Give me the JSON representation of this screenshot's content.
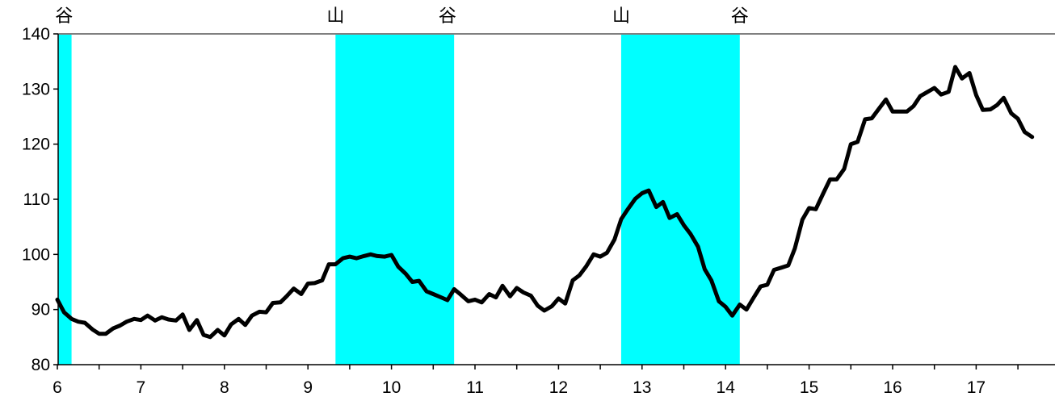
{
  "chart_data": {
    "type": "line",
    "title": "",
    "xlabel": "",
    "ylabel": "",
    "xlim": [
      6,
      17.9
    ],
    "ylim": [
      80,
      140
    ],
    "y_ticks": [
      "80",
      "90",
      "100",
      "110",
      "120",
      "130",
      "140"
    ],
    "x_ticks": [
      "6",
      "7",
      "8",
      "9",
      "10",
      "11",
      "12",
      "13",
      "14",
      "15",
      "16",
      "17"
    ],
    "grid": false,
    "colors": {
      "line": "#000000",
      "shade": "#00ffff",
      "axis": "#000000",
      "top_rule": "#808080"
    },
    "shaded_periods": [
      {
        "start": 6.0,
        "end": 6.17
      },
      {
        "start": 9.33,
        "end": 10.75
      },
      {
        "start": 12.75,
        "end": 14.17
      }
    ],
    "turning_points": [
      {
        "label": "谷",
        "x": 6.08
      },
      {
        "label": "山",
        "x": 9.33
      },
      {
        "label": "谷",
        "x": 10.67
      },
      {
        "label": "山",
        "x": 12.75
      },
      {
        "label": "谷",
        "x": 14.17
      }
    ],
    "series": [
      {
        "x": [
          6.0,
          6.08,
          6.17,
          6.25,
          6.33,
          6.42,
          6.5,
          6.58,
          6.67,
          6.75,
          6.83,
          6.92,
          7.0,
          7.08,
          7.17,
          7.25,
          7.33,
          7.42,
          7.5,
          7.58,
          7.67,
          7.75,
          7.83,
          7.92,
          8.0,
          8.08,
          8.17,
          8.25,
          8.33,
          8.42,
          8.5,
          8.58,
          8.67,
          8.75,
          8.83,
          8.92,
          9.0,
          9.08,
          9.17,
          9.25,
          9.33,
          9.42,
          9.5,
          9.58,
          9.67,
          9.75,
          9.83,
          9.92,
          10.0,
          10.08,
          10.17,
          10.25,
          10.33,
          10.42,
          10.5,
          10.58,
          10.67,
          10.75,
          10.83,
          10.92,
          11.0,
          11.08,
          11.17,
          11.25,
          11.33,
          11.42,
          11.5,
          11.58,
          11.67,
          11.75,
          11.83,
          11.92,
          12.0,
          12.08,
          12.17,
          12.25,
          12.33,
          12.42,
          12.5,
          12.58,
          12.67,
          12.75,
          12.83,
          12.92,
          13.0,
          13.08,
          13.17,
          13.25,
          13.33,
          13.42,
          13.5,
          13.58,
          13.67,
          13.75,
          13.83,
          13.92,
          14.0,
          14.08,
          14.17,
          14.25,
          14.33,
          14.42,
          14.5,
          14.58,
          14.67,
          14.75,
          14.83,
          14.92,
          15.0,
          15.08,
          15.17,
          15.25,
          15.33,
          15.42,
          15.5,
          15.58,
          15.67,
          15.75,
          15.83,
          15.92,
          16.0,
          16.08,
          16.17,
          16.25,
          16.33,
          16.42,
          16.5,
          16.58,
          16.67,
          16.75,
          16.83,
          16.92,
          17.0,
          17.08,
          17.17,
          17.25,
          17.33,
          17.42,
          17.5,
          17.58,
          17.67
        ],
        "values": [
          91.8,
          89.5,
          88.3,
          87.8,
          87.6,
          86.4,
          85.6,
          85.6,
          86.6,
          87.1,
          87.8,
          88.3,
          88.1,
          88.9,
          88.0,
          88.6,
          88.2,
          88.0,
          89.1,
          86.3,
          88.1,
          85.4,
          85.0,
          86.3,
          85.3,
          87.3,
          88.3,
          87.2,
          88.9,
          89.6,
          89.5,
          91.2,
          91.3,
          92.5,
          93.8,
          92.8,
          94.7,
          94.8,
          95.3,
          98.2,
          98.2,
          99.3,
          99.6,
          99.3,
          99.7,
          100.0,
          99.7,
          99.6,
          99.9,
          97.8,
          96.5,
          95.0,
          95.2,
          93.3,
          92.8,
          92.3,
          91.7,
          93.7,
          92.7,
          91.5,
          91.8,
          91.3,
          92.8,
          92.2,
          94.3,
          92.4,
          93.9,
          93.1,
          92.5,
          90.7,
          89.8,
          90.6,
          92.0,
          91.1,
          95.3,
          96.2,
          97.8,
          100.0,
          99.6,
          100.3,
          102.7,
          106.4,
          108.2,
          110.1,
          111.1,
          111.6,
          108.6,
          109.5,
          106.6,
          107.3,
          105.3,
          103.7,
          101.4,
          97.3,
          95.3,
          91.5,
          90.5,
          88.9,
          90.9,
          90.0,
          92.0,
          94.2,
          94.5,
          97.2,
          97.6,
          98.0,
          101.1,
          106.3,
          108.4,
          108.2,
          111.1,
          113.6,
          113.6,
          115.5,
          120.0,
          120.4,
          124.5,
          124.7,
          126.3,
          128.1,
          125.9,
          125.9,
          125.9,
          126.9,
          128.7,
          129.5,
          130.2,
          129.0,
          129.5,
          134.0,
          131.9,
          132.9,
          128.9,
          126.2,
          126.3,
          127.1,
          128.4,
          125.6,
          124.6,
          122.2,
          121.3
        ]
      }
    ]
  }
}
